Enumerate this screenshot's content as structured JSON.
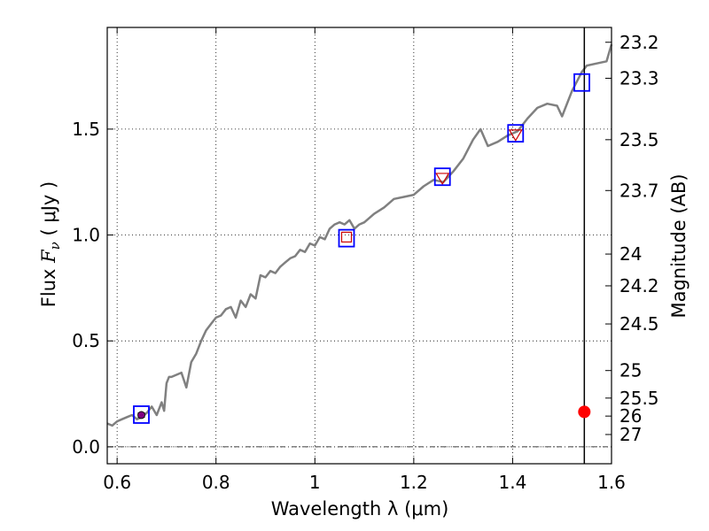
{
  "chart_data": {
    "type": "line",
    "title": "",
    "xlabel": "Wavelength  λ (μm)",
    "ylabel": "Flux  F_ν  ( μJy )",
    "ylabel_parts": {
      "prefix": "Flux  ",
      "sym": "F",
      "sub": "ν",
      "unit": "  ( μJy )"
    },
    "y2label": "Magnitude (AB)",
    "xlim": [
      0.58,
      1.6
    ],
    "ylim": [
      -0.08,
      1.98
    ],
    "grid": true,
    "x_ticks": [
      {
        "value": 0.6,
        "label": "0.6"
      },
      {
        "value": 0.8,
        "label": "0.8"
      },
      {
        "value": 1.0,
        "label": "1"
      },
      {
        "value": 1.2,
        "label": "1.2"
      },
      {
        "value": 1.4,
        "label": "1.4"
      },
      {
        "value": 1.6,
        "label": "1.6"
      }
    ],
    "y_ticks": [
      {
        "value": 0.0,
        "label": "0.0"
      },
      {
        "value": 0.5,
        "label": "0.5"
      },
      {
        "value": 1.0,
        "label": "1.0"
      },
      {
        "value": 1.5,
        "label": "1.5"
      }
    ],
    "y2_ticks": [
      {
        "label": "23.2",
        "flux": 1.91
      },
      {
        "label": "23.3",
        "flux": 1.74
      },
      {
        "label": "23.5",
        "flux": 1.45
      },
      {
        "label": "23.7",
        "flux": 1.21
      },
      {
        "label": "24",
        "flux": 0.91
      },
      {
        "label": "24.2",
        "flux": 0.76
      },
      {
        "label": "24.5",
        "flux": 0.58
      },
      {
        "label": "25",
        "flux": 0.36
      },
      {
        "label": "25.5",
        "flux": 0.23
      },
      {
        "label": "26",
        "flux": 0.145
      },
      {
        "label": "27",
        "flux": 0.058
      }
    ],
    "zero_line": true,
    "vertical_line_x": 1.545,
    "series": [
      {
        "kind": "spectrum",
        "color": "#808080",
        "x": [
          0.58,
          0.59,
          0.6,
          0.61,
          0.62,
          0.63,
          0.64,
          0.65,
          0.66,
          0.67,
          0.68,
          0.69,
          0.695,
          0.7,
          0.705,
          0.71,
          0.72,
          0.73,
          0.74,
          0.75,
          0.76,
          0.77,
          0.78,
          0.79,
          0.8,
          0.81,
          0.82,
          0.83,
          0.84,
          0.85,
          0.86,
          0.87,
          0.88,
          0.89,
          0.9,
          0.91,
          0.92,
          0.93,
          0.94,
          0.95,
          0.96,
          0.97,
          0.98,
          0.99,
          1.0,
          1.01,
          1.02,
          1.03,
          1.04,
          1.05,
          1.06,
          1.07,
          1.08,
          1.09,
          1.1,
          1.12,
          1.14,
          1.16,
          1.18,
          1.2,
          1.22,
          1.24,
          1.26,
          1.28,
          1.3,
          1.32,
          1.335,
          1.35,
          1.37,
          1.39,
          1.41,
          1.43,
          1.45,
          1.47,
          1.49,
          1.5,
          1.52,
          1.54,
          1.55,
          1.57,
          1.59,
          1.6
        ],
        "y": [
          0.11,
          0.1,
          0.12,
          0.13,
          0.14,
          0.15,
          0.13,
          0.14,
          0.16,
          0.19,
          0.15,
          0.21,
          0.17,
          0.3,
          0.33,
          0.33,
          0.34,
          0.35,
          0.28,
          0.4,
          0.44,
          0.5,
          0.55,
          0.58,
          0.61,
          0.62,
          0.65,
          0.66,
          0.61,
          0.69,
          0.66,
          0.72,
          0.7,
          0.81,
          0.8,
          0.83,
          0.82,
          0.85,
          0.87,
          0.89,
          0.9,
          0.93,
          0.92,
          0.96,
          0.95,
          0.99,
          0.98,
          1.03,
          1.05,
          1.06,
          1.05,
          1.07,
          1.03,
          1.05,
          1.06,
          1.1,
          1.13,
          1.17,
          1.18,
          1.19,
          1.23,
          1.26,
          1.25,
          1.3,
          1.36,
          1.45,
          1.5,
          1.42,
          1.44,
          1.47,
          1.49,
          1.55,
          1.6,
          1.62,
          1.61,
          1.56,
          1.68,
          1.77,
          1.8,
          1.81,
          1.82,
          1.9
        ]
      }
    ],
    "square_markers": [
      {
        "x": 0.649,
        "y": 0.152
      },
      {
        "x": 1.064,
        "y": 0.985
      },
      {
        "x": 1.258,
        "y": 1.275
      },
      {
        "x": 1.406,
        "y": 1.48
      },
      {
        "x": 1.54,
        "y": 1.72
      }
    ],
    "triangle_markers": [
      {
        "x": 1.258,
        "y": 1.27
      },
      {
        "x": 1.406,
        "y": 1.475
      }
    ],
    "small_square_markers": [
      {
        "x": 1.064,
        "y": 0.99
      }
    ],
    "errorbar_points": [
      {
        "x": 0.649,
        "y": 0.15,
        "err": 0.01
      }
    ],
    "filled_points": [
      {
        "x": 1.545,
        "y": 0.165
      }
    ],
    "colors": {
      "spectrum": "#808080",
      "square": "#0000ff",
      "triangle": "#cc0000",
      "filled_point": "#ff0000",
      "errorbar_point": "#800080",
      "vline": "#000000"
    }
  }
}
